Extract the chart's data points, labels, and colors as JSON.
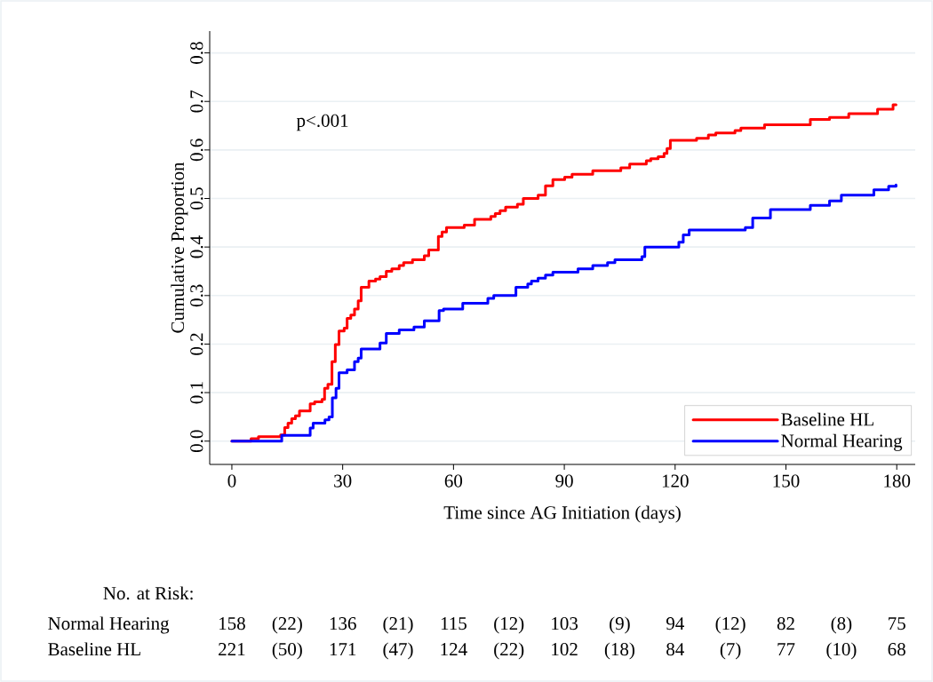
{
  "chart_data": {
    "type": "step",
    "xlabel": "Time since AG Initiation (days)",
    "ylabel": "Cumulative Proportion",
    "xlim": [
      -6,
      185
    ],
    "ylim": [
      -0.048,
      0.845
    ],
    "xticks": [
      0,
      30,
      60,
      90,
      120,
      150,
      180
    ],
    "yticks": [
      {
        "value": 0,
        "label": "0.0"
      },
      {
        "value": 0.1,
        "label": "0.1"
      },
      {
        "value": 0.2,
        "label": "0.2"
      },
      {
        "value": 0.3,
        "label": "0.3"
      },
      {
        "value": 0.4,
        "label": "0.4"
      },
      {
        "value": 0.5,
        "label": "0.5"
      },
      {
        "value": 0.6,
        "label": "0.6"
      },
      {
        "value": 0.7,
        "label": "0.7"
      },
      {
        "value": 0.8,
        "label": "0.8"
      }
    ],
    "grid": "y",
    "legend": "bottom right",
    "series": [
      {
        "name": "Baseline HL",
        "color": "#ff0000",
        "x": [
          0,
          5.2,
          7.2,
          13.2,
          14.3,
          15.2,
          16.2,
          17.2,
          18.3,
          21.2,
          22.4,
          24.4,
          25.1,
          26.0,
          27.1,
          28.0,
          29.0,
          30.4,
          31.2,
          32.2,
          33.2,
          34.2,
          35.0,
          37.1,
          38.9,
          40.1,
          41.8,
          43.3,
          45.3,
          46.5,
          48.9,
          52.1,
          53.3,
          55.9,
          56.9,
          58.1,
          62.9,
          65.7,
          70.1,
          71.3,
          72.6,
          74.1,
          77.3,
          78.9,
          82.9,
          84.9,
          86.9,
          90.1,
          92.1,
          97.7,
          105.3,
          107.7,
          112.2,
          113.4,
          115.4,
          117.0,
          117.8,
          118.7,
          125.8,
          129.0,
          131.0,
          136.2,
          137.8,
          144.2,
          156.6,
          161.8,
          167.0,
          174.8,
          179.0,
          179.8
        ],
        "values": [
          0,
          0.005,
          0.009,
          0.013,
          0.028,
          0.037,
          0.046,
          0.052,
          0.062,
          0.077,
          0.081,
          0.086,
          0.109,
          0.117,
          0.164,
          0.199,
          0.227,
          0.233,
          0.253,
          0.26,
          0.272,
          0.289,
          0.317,
          0.33,
          0.334,
          0.339,
          0.35,
          0.355,
          0.362,
          0.368,
          0.374,
          0.382,
          0.394,
          0.422,
          0.431,
          0.44,
          0.445,
          0.457,
          0.463,
          0.469,
          0.475,
          0.482,
          0.488,
          0.5,
          0.507,
          0.526,
          0.539,
          0.544,
          0.55,
          0.557,
          0.563,
          0.571,
          0.578,
          0.582,
          0.586,
          0.593,
          0.603,
          0.62,
          0.624,
          0.631,
          0.635,
          0.64,
          0.645,
          0.652,
          0.663,
          0.667,
          0.675,
          0.684,
          0.693,
          0.693
        ]
      },
      {
        "name": "Normal Hearing",
        "color": "#0000ff",
        "x": [
          0,
          13.5,
          21.2,
          22.0,
          25.2,
          26.3,
          27.2,
          28.2,
          29.0,
          31.2,
          33.2,
          34.2,
          35.0,
          40.1,
          41.8,
          45.3,
          49.3,
          52.1,
          56.1,
          57.3,
          62.5,
          69.3,
          70.9,
          76.9,
          80.1,
          81.1,
          82.9,
          84.9,
          86.9,
          93.7,
          97.7,
          101.7,
          103.7,
          111.0,
          111.8,
          121.0,
          122.2,
          123.8,
          139.0,
          141.0,
          145.8,
          156.6,
          161.8,
          165.0,
          173.8,
          177.8,
          179.8
        ],
        "values": [
          0,
          0.012,
          0.027,
          0.037,
          0.044,
          0.05,
          0.089,
          0.109,
          0.141,
          0.147,
          0.164,
          0.171,
          0.19,
          0.202,
          0.222,
          0.229,
          0.235,
          0.248,
          0.269,
          0.272,
          0.284,
          0.294,
          0.3,
          0.317,
          0.324,
          0.33,
          0.336,
          0.342,
          0.348,
          0.355,
          0.362,
          0.368,
          0.374,
          0.38,
          0.4,
          0.41,
          0.425,
          0.435,
          0.44,
          0.46,
          0.477,
          0.486,
          0.495,
          0.507,
          0.518,
          0.525,
          0.528
        ]
      }
    ],
    "annotations": [
      "p<.001",
      "No. at Risk:",
      "Normal Hearing",
      "158",
      "(22)",
      "136",
      "(21)",
      "115",
      "(12)",
      "103",
      "(9)",
      "94",
      "(12)",
      "82",
      "(8)",
      "75",
      "Baseline HL",
      "221",
      "(50)",
      "171",
      "(47)",
      "124",
      "(22)",
      "102",
      "(18)",
      "84",
      "(7)",
      "77",
      "(10)",
      "68"
    ]
  }
}
